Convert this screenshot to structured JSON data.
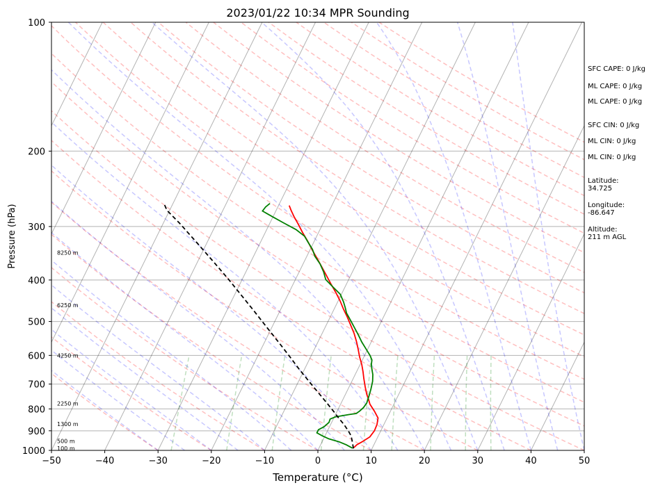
{
  "chart_data": {
    "type": "line",
    "title": "2023/01/22 10:34 MPR Sounding",
    "xlabel": "Temperature (°C)",
    "ylabel": "Pressure (hPa)",
    "xlim": [
      -50,
      50
    ],
    "ylim": [
      1000,
      100
    ],
    "yscale": "log",
    "skew": true,
    "x_ticks": [
      "−50",
      "−40",
      "−30",
      "−20",
      "−10",
      "0",
      "10",
      "20",
      "30",
      "40",
      "50"
    ],
    "y_ticks": [
      "100",
      "200",
      "300",
      "400",
      "500",
      "600",
      "700",
      "800",
      "900",
      "1000"
    ],
    "height_labels": [
      {
        "text": "100 m",
        "pressure": 988
      },
      {
        "text": "500 m",
        "pressure": 950
      },
      {
        "text": "1300 m",
        "pressure": 868
      },
      {
        "text": "2250 m",
        "pressure": 777
      },
      {
        "text": "4250 m",
        "pressure": 600
      },
      {
        "text": "6250 m",
        "pressure": 458
      },
      {
        "text": "8250 m",
        "pressure": 345
      }
    ],
    "series": [
      {
        "name": "Temperature",
        "color": "#ff0000",
        "points": [
          [
            6.5,
            985
          ],
          [
            6.8,
            970
          ],
          [
            7.5,
            955
          ],
          [
            8.5,
            930
          ],
          [
            8.8,
            900
          ],
          [
            8.7,
            870
          ],
          [
            8.3,
            840
          ],
          [
            7.0,
            810
          ],
          [
            5.5,
            780
          ],
          [
            4.8,
            760
          ],
          [
            4.0,
            740
          ],
          [
            3.0,
            710
          ],
          [
            2.0,
            680
          ],
          [
            1.2,
            655
          ],
          [
            0.3,
            630
          ],
          [
            -0.8,
            605
          ],
          [
            -1.8,
            580
          ],
          [
            -2.8,
            557
          ],
          [
            -4.0,
            533
          ],
          [
            -5.4,
            510
          ],
          [
            -6.8,
            488
          ],
          [
            -8.3,
            467
          ],
          [
            -9.6,
            448
          ],
          [
            -11.2,
            428
          ],
          [
            -12.8,
            410
          ],
          [
            -14.4,
            392
          ],
          [
            -16.1,
            374
          ],
          [
            -17.8,
            357
          ],
          [
            -19.6,
            340
          ],
          [
            -21.3,
            324
          ],
          [
            -23.1,
            309
          ],
          [
            -24.6,
            296
          ],
          [
            -26.0,
            285
          ],
          [
            -27.2,
            275
          ],
          [
            -28.0,
            268
          ]
        ]
      },
      {
        "name": "Dewpoint",
        "color": "#008000",
        "points": [
          [
            6.3,
            988
          ],
          [
            4.8,
            970
          ],
          [
            3.2,
            955
          ],
          [
            1.0,
            940
          ],
          [
            -0.5,
            925
          ],
          [
            -1.8,
            910
          ],
          [
            -1.8,
            895
          ],
          [
            -1.0,
            880
          ],
          [
            -0.5,
            860
          ],
          [
            -0.6,
            845
          ],
          [
            0.2,
            835
          ],
          [
            2.5,
            825
          ],
          [
            3.8,
            820
          ],
          [
            4.2,
            810
          ],
          [
            4.6,
            795
          ],
          [
            4.8,
            775
          ],
          [
            4.6,
            750
          ],
          [
            4.3,
            720
          ],
          [
            3.9,
            690
          ],
          [
            3.3,
            665
          ],
          [
            2.6,
            645
          ],
          [
            2.1,
            630
          ],
          [
            1.8,
            615
          ],
          [
            1.0,
            600
          ],
          [
            -0.3,
            580
          ],
          [
            -1.8,
            558
          ],
          [
            -3.1,
            537
          ],
          [
            -4.6,
            515
          ],
          [
            -6.1,
            494
          ],
          [
            -7.3,
            478
          ],
          [
            -8.0,
            465
          ],
          [
            -8.9,
            450
          ],
          [
            -10.2,
            432
          ],
          [
            -12.3,
            415
          ],
          [
            -14.3,
            399
          ],
          [
            -15.4,
            383
          ],
          [
            -16.8,
            367
          ],
          [
            -18.5,
            352
          ],
          [
            -19.6,
            339
          ],
          [
            -21.0,
            327
          ],
          [
            -22.3,
            316
          ],
          [
            -24.5,
            305
          ],
          [
            -27.5,
            294
          ],
          [
            -30.0,
            285
          ],
          [
            -32.5,
            276
          ],
          [
            -32.3,
            270
          ],
          [
            -31.8,
            265
          ]
        ]
      },
      {
        "name": "Parcel",
        "color": "#000000",
        "points": [
          [
            6.5,
            990
          ],
          [
            5.8,
            960
          ],
          [
            4.9,
            925
          ],
          [
            3.9,
            900
          ],
          [
            2.5,
            870
          ],
          [
            0.9,
            840
          ],
          [
            -0.7,
            810
          ],
          [
            -2.4,
            780
          ],
          [
            -4.2,
            750
          ],
          [
            -6.4,
            715
          ],
          [
            -8.7,
            680
          ],
          [
            -11.1,
            645
          ],
          [
            -13.5,
            610
          ],
          [
            -16.1,
            575
          ],
          [
            -18.9,
            540
          ],
          [
            -21.9,
            505
          ],
          [
            -25.1,
            470
          ],
          [
            -28.6,
            435
          ],
          [
            -32.4,
            400
          ],
          [
            -36.7,
            365
          ],
          [
            -41.5,
            330
          ],
          [
            -46.9,
            295
          ],
          [
            -50.5,
            275
          ],
          [
            -51.7,
            265
          ]
        ]
      }
    ]
  },
  "side_panel": {
    "sfc_cape": "SFC CAPE: 0 J/kg",
    "ml_cape_1": "ML CAPE: 0 J/kg",
    "ml_cape_2": "ML CAPE: 0 J/kg",
    "sfc_cin": "SFC CIN: 0 J/kg",
    "ml_cin_1": "ML CIN: 0 J/kg",
    "ml_cin_2": "ML CIN: 0 J/kg",
    "latitude_label": "Latitude:",
    "latitude_value": "34.725",
    "longitude_label": "Longitude:",
    "longitude_value": "-86.647",
    "altitude_label": "Altitude:",
    "altitude_value": "211 m AGL"
  }
}
